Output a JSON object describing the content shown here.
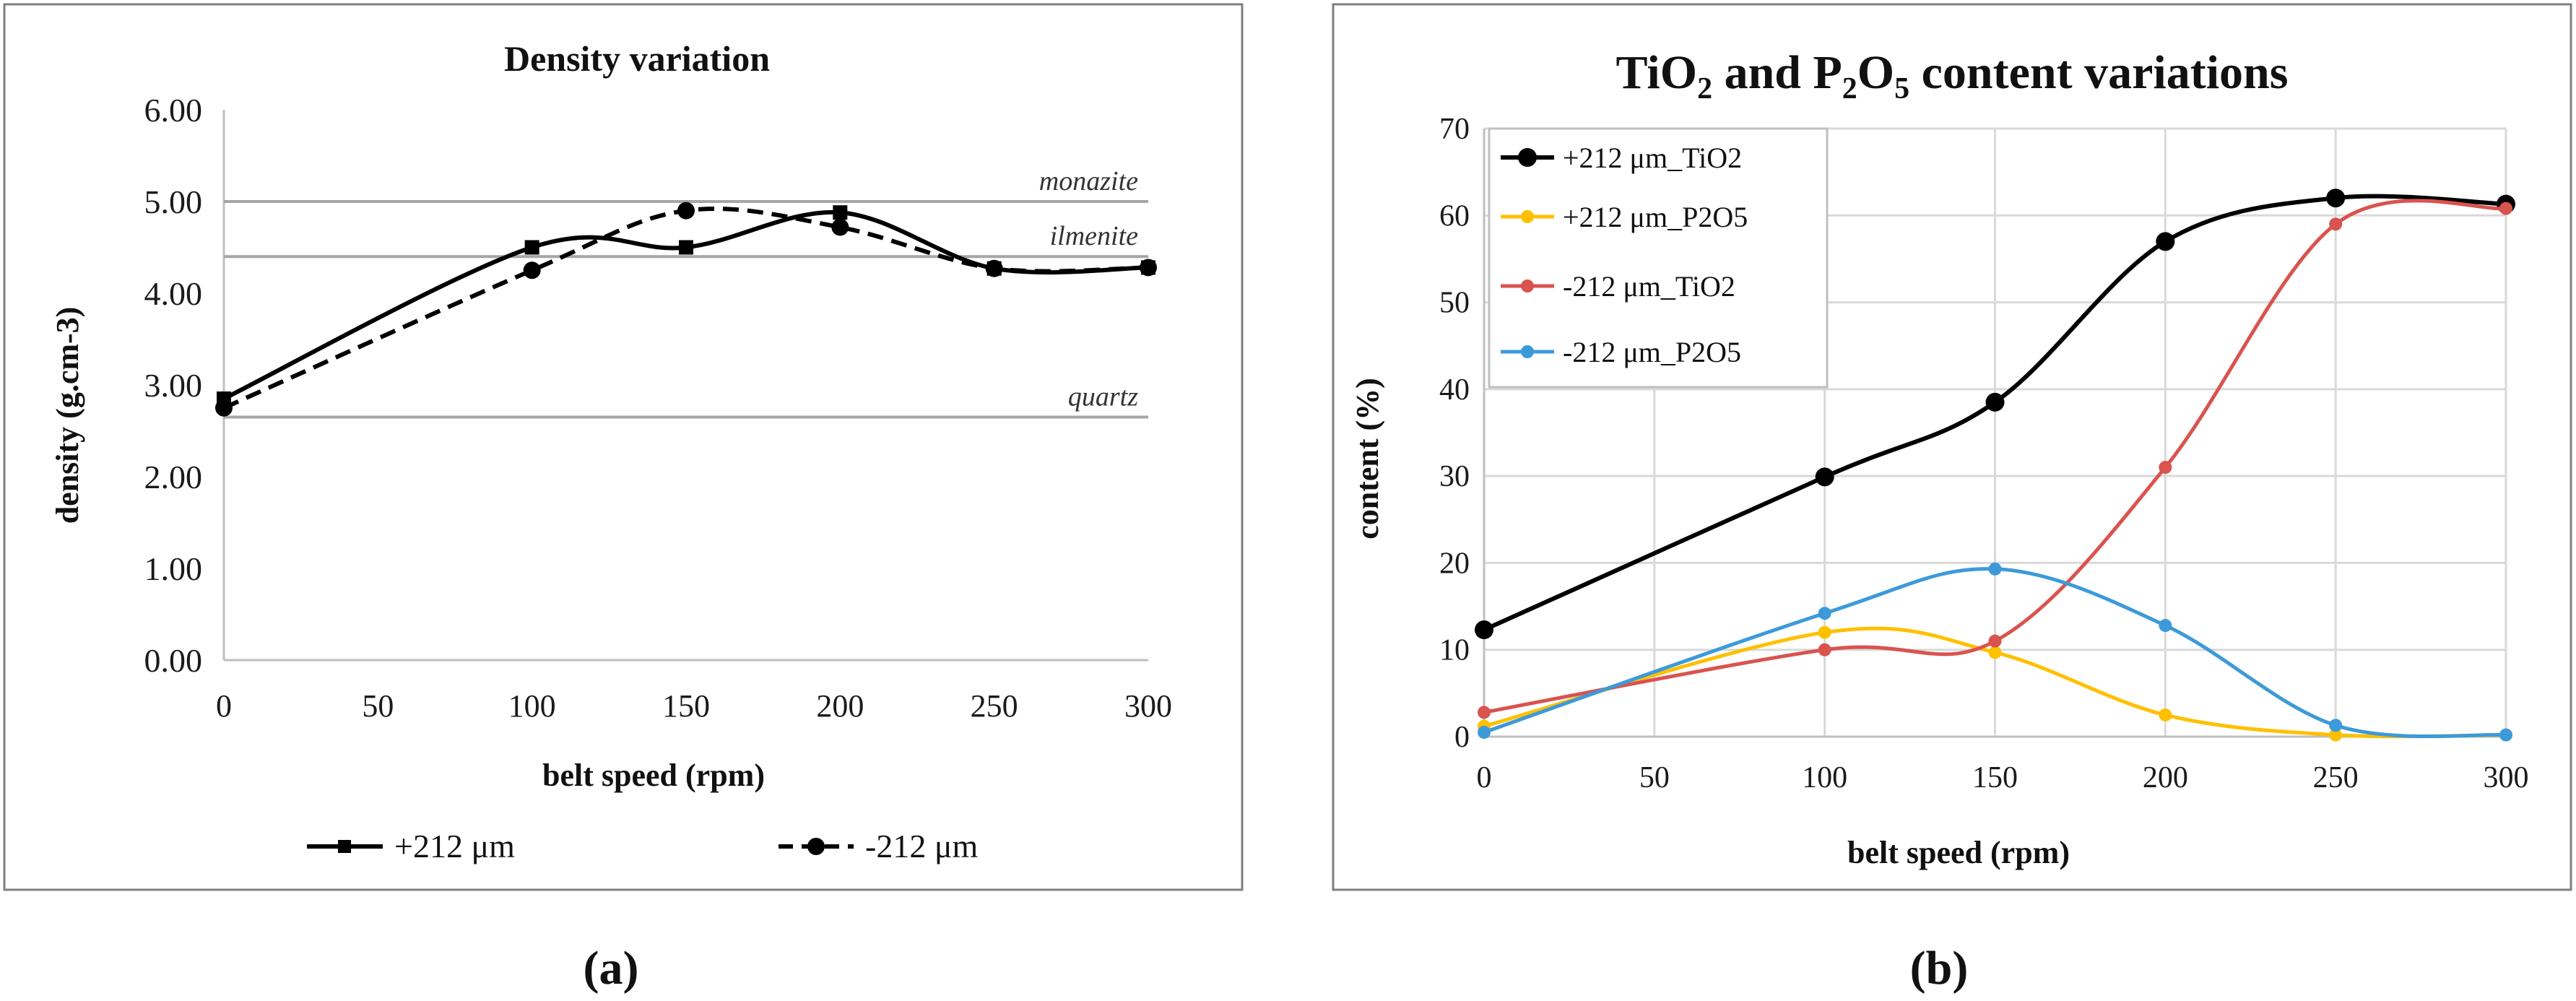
{
  "panels": [
    {
      "label": "(a)"
    },
    {
      "label": "(b)"
    }
  ],
  "chart_data": [
    {
      "type": "line",
      "title": "Density variation",
      "xlabel": "belt speed (rpm)",
      "ylabel": "density (g.cm-3)",
      "x": [
        0,
        50,
        100,
        150,
        200,
        250,
        300
      ],
      "xlim": [
        0,
        300
      ],
      "ylim": [
        0,
        6
      ],
      "yticks": [
        "0.00",
        "1.00",
        "2.00",
        "3.00",
        "4.00",
        "5.00",
        "6.00"
      ],
      "xticks": [
        "0",
        "50",
        "100",
        "150",
        "200",
        "250",
        "300"
      ],
      "reference_lines": [
        {
          "name": "monazite",
          "value": 5.0
        },
        {
          "name": "ilmenite",
          "value": 4.4
        },
        {
          "name": "quartz",
          "value": 2.65
        }
      ],
      "series": [
        {
          "name": "+212 μm",
          "x": [
            0,
            100,
            150,
            200,
            250,
            300
          ],
          "values": [
            2.85,
            4.5,
            4.5,
            4.88,
            4.27,
            4.28
          ],
          "color": "#000000",
          "dash": "solid",
          "marker": "square"
        },
        {
          "name": "-212 μm",
          "x": [
            0,
            100,
            150,
            200,
            250,
            300
          ],
          "values": [
            2.75,
            4.25,
            4.9,
            4.72,
            4.27,
            4.28
          ],
          "color": "#000000",
          "dash": "dashed",
          "marker": "circle"
        }
      ],
      "legend": "bottom"
    },
    {
      "type": "line",
      "title_parts": [
        "TiO",
        "2",
        " and P",
        "2",
        "O",
        "5",
        " content variations"
      ],
      "xlabel": "belt speed (rpm)",
      "ylabel": "content (%)",
      "xlim": [
        0,
        300
      ],
      "ylim": [
        0,
        70
      ],
      "yticks": [
        "0",
        "10",
        "20",
        "30",
        "40",
        "50",
        "60",
        "70"
      ],
      "xticks": [
        "0",
        "50",
        "100",
        "150",
        "200",
        "250",
        "300"
      ],
      "series": [
        {
          "name": "+212 μm_TiO2",
          "x": [
            0,
            100,
            150,
            200,
            250,
            300
          ],
          "values": [
            12.3,
            29.9,
            38.5,
            57,
            62,
            61.3
          ],
          "color": "#000000",
          "marker": "circle-large"
        },
        {
          "name": "+212 μm_P2O5",
          "x": [
            0,
            100,
            150,
            200,
            250,
            300
          ],
          "values": [
            1.2,
            12,
            9.7,
            2.5,
            0.2,
            0.2
          ],
          "color": "#FFC000",
          "marker": "circle"
        },
        {
          "name": "-212 μm_TiO2",
          "x": [
            0,
            100,
            150,
            200,
            250,
            300
          ],
          "values": [
            2.8,
            10,
            11,
            31,
            59,
            60.8
          ],
          "color": "#D9534F",
          "marker": "circle"
        },
        {
          "name": "-212 μm_P2O5",
          "x": [
            0,
            100,
            150,
            200,
            250,
            300
          ],
          "values": [
            0.5,
            14.2,
            19.3,
            12.8,
            1.3,
            0.2
          ],
          "color": "#3D9AD9",
          "marker": "circle"
        }
      ],
      "legend": "top-left"
    }
  ]
}
